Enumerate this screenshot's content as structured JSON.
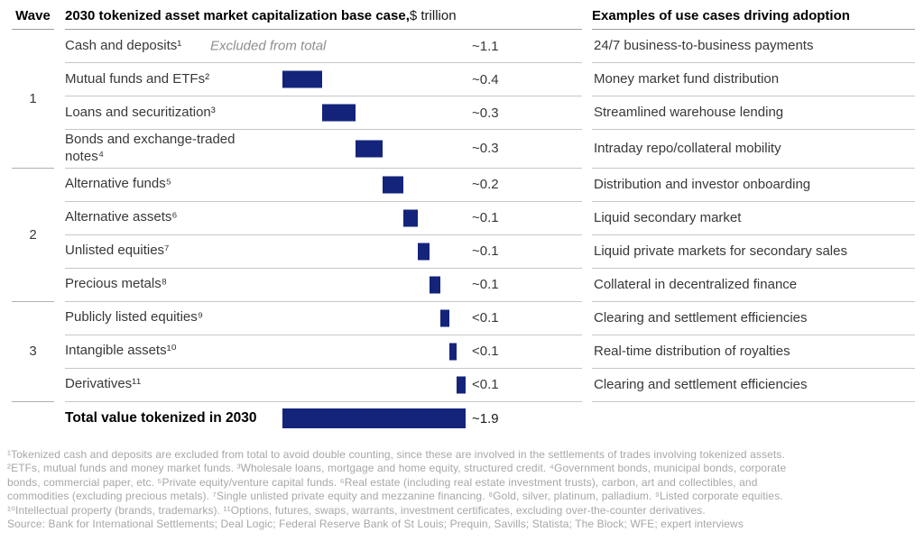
{
  "header": {
    "wave_label": "Wave",
    "main_title_bold": "2030 tokenized asset market capitalization base case,",
    "main_title_unit": " $ trillion",
    "right_title": "Examples of use cases driving adoption"
  },
  "colors": {
    "bar": "#14247b",
    "excluded_note_text": "#8f8f8f",
    "footnote_text": "#a7a7a7",
    "row_line": "#c7c7c7",
    "header_line": "#9e9e9e"
  },
  "chart_data": {
    "type": "bar",
    "variant": "horizontal-waterfall",
    "title": "2030 tokenized asset market capitalization base case, $ trillion",
    "unit": "$ trillion",
    "legend": "none",
    "grid": "off",
    "xlim": [
      0,
      1.9
    ],
    "categories": [
      "Cash and deposits¹",
      "Mutual funds and ETFs²",
      "Loans and securitization³",
      "Bonds and exchange-traded notes⁴",
      "Alternative funds⁵",
      "Alternative assets⁶",
      "Unlisted equities⁷",
      "Precious metals⁸",
      "Publicly listed equities⁹",
      "Intangible assets¹⁰",
      "Derivatives¹¹"
    ],
    "value_labels": [
      "~1.1",
      "~0.4",
      "~0.3",
      "~0.3",
      "~0.2",
      "~0.1",
      "~0.1",
      "~0.1",
      "<0.1",
      "<0.1",
      "<0.1"
    ],
    "values_est": [
      1.1,
      0.41,
      0.34,
      0.28,
      0.21,
      0.15,
      0.12,
      0.11,
      0.09,
      0.08,
      0.09
    ],
    "rows": [
      {
        "wave": 1,
        "label": "Cash and deposits¹",
        "note": "Excluded from total",
        "value_label": "~1.1",
        "value_est": 1.1,
        "bar": null,
        "use_case": "24/7 business-to-business payments"
      },
      {
        "wave": 1,
        "label": "Mutual funds and ETFs²",
        "value_label": "~0.4",
        "value_est": 0.41,
        "bar": {
          "start": 0,
          "width": 0.41
        },
        "use_case": "Money market fund distribution"
      },
      {
        "wave": 1,
        "label": "Loans and securitization³",
        "value_label": "~0.3",
        "value_est": 0.34,
        "bar": {
          "start": 0.41,
          "width": 0.34
        },
        "use_case": "Streamlined warehouse lending"
      },
      {
        "wave": 1,
        "label": "Bonds and exchange-traded notes⁴",
        "value_label": "~0.3",
        "value_est": 0.28,
        "bar": {
          "start": 0.75,
          "width": 0.28
        },
        "use_case": "Intraday repo/collateral mobility"
      },
      {
        "wave": 2,
        "label": "Alternative funds⁵",
        "value_label": "~0.2",
        "value_est": 0.21,
        "bar": {
          "start": 1.03,
          "width": 0.21
        },
        "use_case": "Distribution and investor onboarding"
      },
      {
        "wave": 2,
        "label": "Alternative assets⁶",
        "value_label": "~0.1",
        "value_est": 0.15,
        "bar": {
          "start": 1.24,
          "width": 0.15
        },
        "use_case": "Liquid secondary market"
      },
      {
        "wave": 2,
        "label": "Unlisted equities⁷",
        "value_label": "~0.1",
        "value_est": 0.12,
        "bar": {
          "start": 1.39,
          "width": 0.12
        },
        "use_case": "Liquid private markets for secondary sales"
      },
      {
        "wave": 2,
        "label": "Precious metals⁸",
        "value_label": "~0.1",
        "value_est": 0.11,
        "bar": {
          "start": 1.51,
          "width": 0.11
        },
        "use_case": "Collateral in decentralized finance"
      },
      {
        "wave": 3,
        "label": "Publicly listed equities⁹",
        "value_label": "<0.1",
        "value_est": 0.09,
        "bar": {
          "start": 1.62,
          "width": 0.09
        },
        "use_case": "Clearing and settlement efficiencies"
      },
      {
        "wave": 3,
        "label": "Intangible assets¹⁰",
        "value_label": "<0.1",
        "value_est": 0.08,
        "bar": {
          "start": 1.71,
          "width": 0.08
        },
        "use_case": "Real-time distribution of royalties"
      },
      {
        "wave": 3,
        "label": "Derivatives¹¹",
        "value_label": "<0.1",
        "value_est": 0.09,
        "bar": {
          "start": 1.79,
          "width": 0.09
        },
        "use_case": "Clearing and settlement efficiencies"
      }
    ],
    "waves": [
      {
        "label": "1",
        "row_start": 0,
        "row_count": 4
      },
      {
        "label": "2",
        "row_start": 4,
        "row_count": 4
      },
      {
        "label": "3",
        "row_start": 8,
        "row_count": 3
      }
    ],
    "total": {
      "label": "Total value tokenized in 2030",
      "value_label": "~1.9",
      "value_est": 1.88,
      "excluded": "Cash and deposits¹ excluded from total"
    }
  },
  "footnotes": [
    "¹Tokenized cash and deposits are excluded from total to avoid double counting, since these are involved in the settlements of trades involving tokenized assets.",
    "²ETFs, mutual funds and money market funds. ³Wholesale loans, mortgage and home equity, structured credit. ⁴Government bonds, municipal bonds, corporate",
    "bonds, commercial paper, etc. ⁵Private equity/venture capital funds. ⁶Real estate (including real estate investment trusts), carbon, art and collectibles, and",
    "commodities (excluding precious metals). ⁷Single unlisted private equity and mezzanine financing. ⁸Gold, silver, platinum, palladium. ⁹Listed corporate equities.",
    "¹⁰Intellectual property (brands, trademarks). ¹¹Options, futures, swaps, warrants, investment certificates, excluding over-the-counter derivatives.",
    "Source: Bank for International Settlements; Deal Logic; Federal Reserve Bank of St Louis; Prequin, Savills; Statista; The Block; WFE; expert interviews"
  ]
}
